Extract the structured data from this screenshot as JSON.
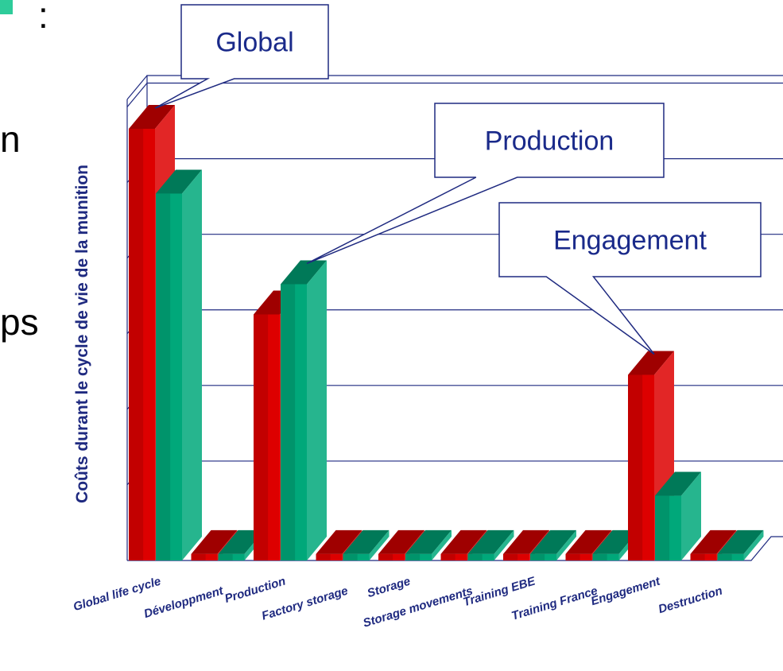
{
  "slide": {
    "fragments": [
      ":",
      "n",
      "ps"
    ],
    "accent_color": "#2ecc9a"
  },
  "chart_data": {
    "type": "bar",
    "title": "",
    "ylabel": "Coûts durant le cycle de vie de la munition",
    "xlabel": "",
    "categories": [
      "Global life cycle",
      "Développment",
      "Production",
      "Factory storage",
      "Storage",
      "Storage movements",
      "Training EBE",
      "Training France",
      "Engagement",
      "Destruction"
    ],
    "series": [
      {
        "color": "#dd0000",
        "values": [
          100,
          1.5,
          57,
          1.5,
          1.5,
          1.5,
          1.5,
          1.5,
          43,
          1.5
        ]
      },
      {
        "color": "#00a87a",
        "values": [
          85,
          1.5,
          64,
          1.5,
          1.5,
          1.5,
          1.5,
          1.5,
          15,
          1.5
        ]
      }
    ],
    "ylim": [
      0,
      100
    ],
    "grid": true,
    "annotations": [
      {
        "text": "Global",
        "target_category": "Global life cycle"
      },
      {
        "text": "Production",
        "target_category": "Production"
      },
      {
        "text": "Engagement",
        "target_category": "Engagement"
      }
    ]
  }
}
